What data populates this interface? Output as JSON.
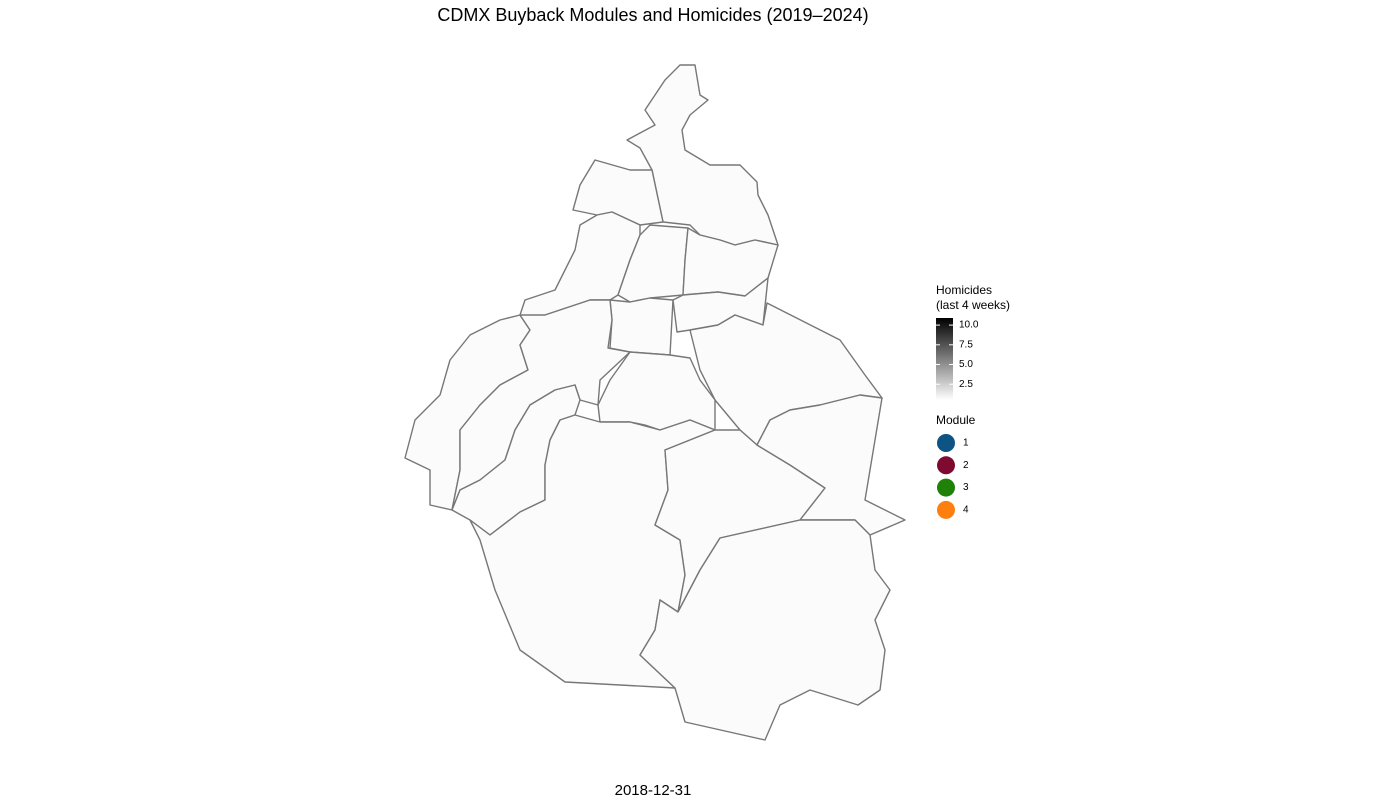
{
  "title": "CDMX Buyback Modules and Homicides (2019–2024)",
  "caption": "2018-12-31",
  "legend": {
    "colorbar": {
      "title_lines": [
        "Homicides",
        "(last 4 weeks)"
      ],
      "lim": [
        0.5,
        10.9
      ],
      "ticks": [
        2.5,
        {
          "value": 5,
          "label": "5.0"
        },
        7.5,
        {
          "value": 10,
          "label": "10.0"
        }
      ],
      "low_color": "#ffffff",
      "high_color": "#000000"
    },
    "modules": {
      "title": "Module",
      "items": [
        {
          "label": "1",
          "color": "#0d5383"
        },
        {
          "label": "2",
          "color": "#7e0a30"
        },
        {
          "label": "3",
          "color": "#1f8108"
        },
        {
          "label": "4",
          "color": "#fe7f0e"
        }
      ]
    }
  }
}
